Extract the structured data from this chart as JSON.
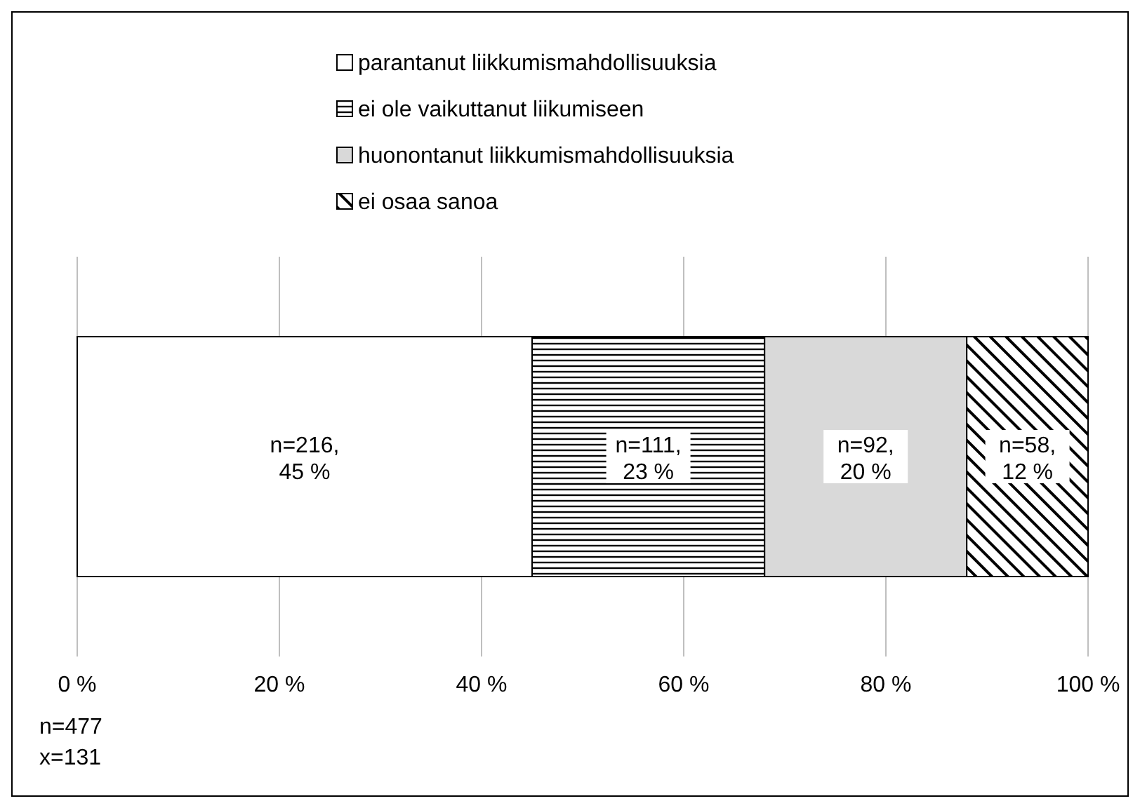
{
  "chart_data": {
    "type": "bar",
    "orientation": "horizontal",
    "stacked": true,
    "categories": [
      null
    ],
    "series": [
      {
        "name": "parantanut liikkumismahdollisuuksia",
        "color": "#ffffff",
        "values": [
          45
        ],
        "value_labels": [
          "n=216,\n45 %"
        ]
      },
      {
        "name": "ei ole vaikuttanut liikumiseen",
        "color": "#000000",
        "values": [
          23
        ],
        "value_labels": [
          "n=111,\n23 %"
        ]
      },
      {
        "name": "huonontanut liikkumismahdollisuuksia",
        "color": "#d9d9d9",
        "values": [
          20
        ],
        "value_labels": [
          "n=92,\n20 %"
        ]
      },
      {
        "name": "ei osaa sanoa",
        "color": "#000000",
        "values": [
          12
        ],
        "value_labels": [
          "n=58,\n12 %"
        ]
      }
    ],
    "xlim": [
      0,
      100
    ],
    "xticks": [
      {
        "value": 0,
        "label": "0 %"
      },
      {
        "value": 20,
        "label": "20 %"
      },
      {
        "value": 40,
        "label": "40 %"
      },
      {
        "value": 60,
        "label": "60 %"
      },
      {
        "value": 80,
        "label": "80 %"
      },
      {
        "value": 100,
        "label": "100 %"
      }
    ],
    "grid": "x",
    "legend": "top",
    "annotations": [
      "n=477",
      "x=131"
    ]
  }
}
